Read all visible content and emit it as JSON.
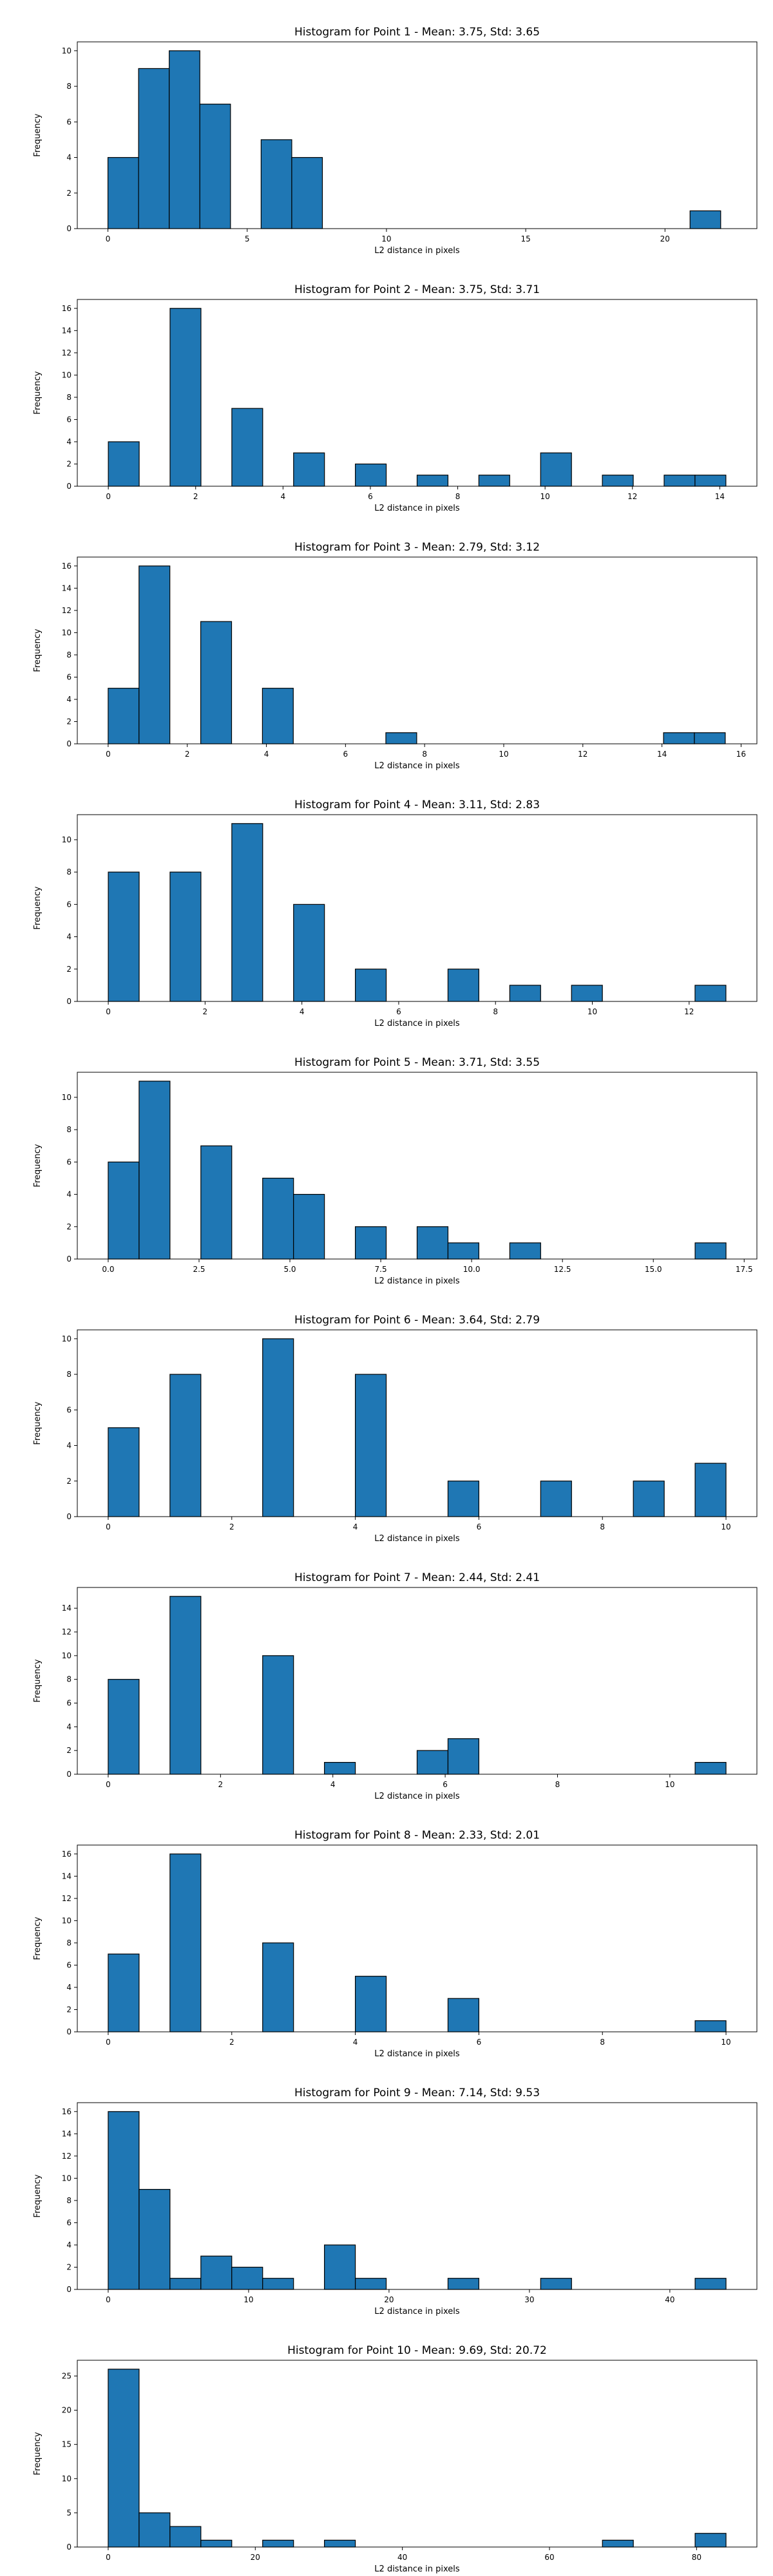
{
  "chart_data": [
    {
      "type": "bar",
      "title": "Histogram for Point 1 - Mean: 3.75, Std: 3.65",
      "xlabel": "L2 distance in pixels",
      "ylabel": "Frequency",
      "xlim": [
        -1.1,
        23.3
      ],
      "ylim": [
        0,
        10.5
      ],
      "xticks": [
        0,
        5,
        10,
        15,
        20
      ],
      "xtick_labels": [
        "0",
        "5",
        "10",
        "15",
        "20"
      ],
      "yticks": [
        0,
        2,
        4,
        6,
        8,
        10
      ],
      "ytick_labels": [
        "0",
        "2",
        "4",
        "6",
        "8",
        "10"
      ],
      "bin_edges": [
        0,
        1.1,
        2.2,
        3.3,
        4.4,
        5.5,
        6.6,
        7.7,
        8.8,
        9.9,
        11,
        12.1,
        13.2,
        14.3,
        15.4,
        16.5,
        17.6,
        18.7,
        19.8,
        20.9,
        22
      ],
      "counts": [
        4,
        9,
        10,
        7,
        0,
        5,
        4,
        0,
        0,
        0,
        0,
        0,
        0,
        0,
        0,
        0,
        0,
        0,
        0,
        1
      ],
      "color": "#1f77b4"
    },
    {
      "type": "bar",
      "title": "Histogram for Point 2 - Mean: 3.75, Std: 3.71",
      "xlabel": "L2 distance in pixels",
      "ylabel": "Frequency",
      "xlim": [
        -0.71,
        14.85
      ],
      "ylim": [
        0,
        16.8
      ],
      "xticks": [
        0,
        2,
        4,
        6,
        8,
        10,
        12,
        14
      ],
      "xtick_labels": [
        "0",
        "2",
        "4",
        "6",
        "8",
        "10",
        "12",
        "14"
      ],
      "yticks": [
        0,
        2,
        4,
        6,
        8,
        10,
        12,
        14,
        16
      ],
      "ytick_labels": [
        "0",
        "2",
        "4",
        "6",
        "8",
        "10",
        "12",
        "14",
        "16"
      ],
      "bin_edges": [
        0,
        0.707,
        1.414,
        2.121,
        2.828,
        3.535,
        4.242,
        4.949,
        5.656,
        6.363,
        7.07,
        7.777,
        8.484,
        9.191,
        9.898,
        10.605,
        11.312,
        12.019,
        12.726,
        13.433,
        14.14
      ],
      "counts": [
        4,
        0,
        16,
        0,
        7,
        0,
        3,
        0,
        2,
        0,
        1,
        0,
        1,
        0,
        3,
        0,
        1,
        0,
        1,
        1
      ],
      "color": "#1f77b4"
    },
    {
      "type": "bar",
      "title": "Histogram for Point 3 - Mean: 2.79, Std: 3.12",
      "xlabel": "L2 distance in pixels",
      "ylabel": "Frequency",
      "xlim": [
        -0.78,
        16.4
      ],
      "ylim": [
        0,
        16.8
      ],
      "xticks": [
        0,
        2,
        4,
        6,
        8,
        10,
        12,
        14,
        16
      ],
      "xtick_labels": [
        "0",
        "2",
        "4",
        "6",
        "8",
        "10",
        "12",
        "14",
        "16"
      ],
      "yticks": [
        0,
        2,
        4,
        6,
        8,
        10,
        12,
        14,
        16
      ],
      "ytick_labels": [
        "0",
        "2",
        "4",
        "6",
        "8",
        "10",
        "12",
        "14",
        "16"
      ],
      "bin_edges": [
        0,
        0.78,
        1.56,
        2.34,
        3.12,
        3.9,
        4.68,
        5.46,
        6.24,
        7.02,
        7.8,
        8.58,
        9.36,
        10.14,
        10.92,
        11.7,
        12.48,
        13.26,
        14.04,
        14.82,
        15.6
      ],
      "counts": [
        5,
        16,
        0,
        11,
        0,
        5,
        0,
        0,
        0,
        1,
        0,
        0,
        0,
        0,
        0,
        0,
        0,
        0,
        1,
        1
      ],
      "color": "#1f77b4"
    },
    {
      "type": "bar",
      "title": "Histogram for Point 4 - Mean: 3.11, Std: 2.83",
      "xlabel": "L2 distance in pixels",
      "ylabel": "Frequency",
      "xlim": [
        -0.64,
        13.4
      ],
      "ylim": [
        0,
        11.55
      ],
      "xticks": [
        0,
        2,
        4,
        6,
        8,
        10,
        12
      ],
      "xtick_labels": [
        "0",
        "2",
        "4",
        "6",
        "8",
        "10",
        "12"
      ],
      "yticks": [
        0,
        2,
        4,
        6,
        8,
        10
      ],
      "ytick_labels": [
        "0",
        "2",
        "4",
        "6",
        "8",
        "10"
      ],
      "bin_edges": [
        0,
        0.638,
        1.276,
        1.914,
        2.552,
        3.19,
        3.828,
        4.466,
        5.104,
        5.742,
        6.38,
        7.018,
        7.656,
        8.294,
        8.932,
        9.57,
        10.208,
        10.846,
        11.484,
        12.122,
        12.76
      ],
      "counts": [
        8,
        0,
        8,
        0,
        11,
        0,
        6,
        0,
        2,
        0,
        0,
        2,
        0,
        1,
        0,
        1,
        0,
        0,
        0,
        1
      ],
      "color": "#1f77b4"
    },
    {
      "type": "bar",
      "title": "Histogram for Point 5 - Mean: 3.71, Std: 3.55",
      "xlabel": "L2 distance in pixels",
      "ylabel": "Frequency",
      "xlim": [
        -0.85,
        17.85
      ],
      "ylim": [
        0,
        11.55
      ],
      "xticks": [
        0,
        2.5,
        5,
        7.5,
        10,
        12.5,
        15,
        17.5
      ],
      "xtick_labels": [
        "0.0",
        "2.5",
        "5.0",
        "7.5",
        "10.0",
        "12.5",
        "15.0",
        "17.5"
      ],
      "yticks": [
        0,
        2,
        4,
        6,
        8,
        10
      ],
      "ytick_labels": [
        "0",
        "2",
        "4",
        "6",
        "8",
        "10"
      ],
      "bin_edges": [
        0,
        0.85,
        1.7,
        2.55,
        3.4,
        4.25,
        5.1,
        5.95,
        6.8,
        7.65,
        8.5,
        9.35,
        10.2,
        11.05,
        11.9,
        12.75,
        13.6,
        14.45,
        15.3,
        16.15,
        17
      ],
      "counts": [
        6,
        11,
        0,
        7,
        0,
        5,
        4,
        0,
        2,
        0,
        2,
        1,
        0,
        1,
        0,
        0,
        0,
        0,
        0,
        1
      ],
      "color": "#1f77b4"
    },
    {
      "type": "bar",
      "title": "Histogram for Point 6 - Mean: 3.64, Std: 2.79",
      "xlabel": "L2 distance in pixels",
      "ylabel": "Frequency",
      "xlim": [
        -0.5,
        10.5
      ],
      "ylim": [
        0,
        10.5
      ],
      "xticks": [
        0,
        2,
        4,
        6,
        8,
        10
      ],
      "xtick_labels": [
        "0",
        "2",
        "4",
        "6",
        "8",
        "10"
      ],
      "yticks": [
        0,
        2,
        4,
        6,
        8,
        10
      ],
      "ytick_labels": [
        "0",
        "2",
        "4",
        "6",
        "8",
        "10"
      ],
      "bin_edges": [
        0,
        0.5,
        1,
        1.5,
        2,
        2.5,
        3,
        3.5,
        4,
        4.5,
        5,
        5.5,
        6,
        6.5,
        7,
        7.5,
        8,
        8.5,
        9,
        9.5,
        10
      ],
      "counts": [
        5,
        0,
        8,
        0,
        0,
        10,
        0,
        0,
        8,
        0,
        0,
        2,
        0,
        0,
        2,
        0,
        0,
        2,
        0,
        3
      ],
      "color": "#1f77b4"
    },
    {
      "type": "bar",
      "title": "Histogram for Point 7 - Mean: 2.44, Std: 2.41",
      "xlabel": "L2 distance in pixels",
      "ylabel": "Frequency",
      "xlim": [
        -0.55,
        11.55
      ],
      "ylim": [
        0,
        15.75
      ],
      "xticks": [
        0,
        2,
        4,
        6,
        8,
        10
      ],
      "xtick_labels": [
        "0",
        "2",
        "4",
        "6",
        "8",
        "10"
      ],
      "yticks": [
        0,
        2,
        4,
        6,
        8,
        10,
        12,
        14
      ],
      "ytick_labels": [
        "0",
        "2",
        "4",
        "6",
        "8",
        "10",
        "12",
        "14"
      ],
      "bin_edges": [
        0,
        0.55,
        1.1,
        1.65,
        2.2,
        2.75,
        3.3,
        3.85,
        4.4,
        4.95,
        5.5,
        6.05,
        6.6,
        7.15,
        7.7,
        8.25,
        8.8,
        9.35,
        9.9,
        10.45,
        11
      ],
      "counts": [
        8,
        0,
        15,
        0,
        0,
        10,
        0,
        1,
        0,
        0,
        2,
        3,
        0,
        0,
        0,
        0,
        0,
        0,
        0,
        1
      ],
      "color": "#1f77b4"
    },
    {
      "type": "bar",
      "title": "Histogram for Point 8 - Mean: 2.33, Std: 2.01",
      "xlabel": "L2 distance in pixels",
      "ylabel": "Frequency",
      "xlim": [
        -0.5,
        10.5
      ],
      "ylim": [
        0,
        16.8
      ],
      "xticks": [
        0,
        2,
        4,
        6,
        8,
        10
      ],
      "xtick_labels": [
        "0",
        "2",
        "4",
        "6",
        "8",
        "10"
      ],
      "yticks": [
        0,
        2,
        4,
        6,
        8,
        10,
        12,
        14,
        16
      ],
      "ytick_labels": [
        "0",
        "2",
        "4",
        "6",
        "8",
        "10",
        "12",
        "14",
        "16"
      ],
      "bin_edges": [
        0,
        0.5,
        1,
        1.5,
        2,
        2.5,
        3,
        3.5,
        4,
        4.5,
        5,
        5.5,
        6,
        6.5,
        7,
        7.5,
        8,
        8.5,
        9,
        9.5,
        10
      ],
      "counts": [
        7,
        0,
        16,
        0,
        0,
        8,
        0,
        0,
        5,
        0,
        0,
        3,
        0,
        0,
        0,
        0,
        0,
        0,
        0,
        1
      ],
      "color": "#1f77b4"
    },
    {
      "type": "bar",
      "title": "Histogram for Point 9 - Mean: 7.14, Std: 9.53",
      "xlabel": "L2 distance in pixels",
      "ylabel": "Frequency",
      "xlim": [
        -2.2,
        46.2
      ],
      "ylim": [
        0,
        16.8
      ],
      "xticks": [
        0,
        10,
        20,
        30,
        40
      ],
      "xtick_labels": [
        "0",
        "10",
        "20",
        "30",
        "40"
      ],
      "yticks": [
        0,
        2,
        4,
        6,
        8,
        10,
        12,
        14,
        16
      ],
      "ytick_labels": [
        "0",
        "2",
        "4",
        "6",
        "8",
        "10",
        "12",
        "14",
        "16"
      ],
      "bin_edges": [
        0,
        2.2,
        4.4,
        6.6,
        8.8,
        11,
        13.2,
        15.4,
        17.6,
        19.8,
        22,
        24.2,
        26.4,
        28.6,
        30.8,
        33,
        35.2,
        37.4,
        39.6,
        41.8,
        44
      ],
      "counts": [
        16,
        9,
        1,
        3,
        2,
        1,
        0,
        4,
        1,
        0,
        0,
        1,
        0,
        0,
        1,
        0,
        0,
        0,
        0,
        1
      ],
      "color": "#1f77b4"
    },
    {
      "type": "bar",
      "title": "Histogram for Point 10 - Mean: 9.69, Std: 20.72",
      "xlabel": "L2 distance in pixels",
      "ylabel": "Frequency",
      "xlim": [
        -4.2,
        88.2
      ],
      "ylim": [
        0,
        27.3
      ],
      "xticks": [
        0,
        20,
        40,
        60,
        80
      ],
      "xtick_labels": [
        "0",
        "20",
        "40",
        "60",
        "80"
      ],
      "yticks": [
        0,
        5,
        10,
        15,
        20,
        25
      ],
      "ytick_labels": [
        "0",
        "5",
        "10",
        "15",
        "20",
        "25"
      ],
      "bin_edges": [
        0,
        4.2,
        8.4,
        12.6,
        16.8,
        21,
        25.2,
        29.4,
        33.6,
        37.8,
        42,
        46.2,
        50.4,
        54.6,
        58.8,
        63,
        67.2,
        71.4,
        75.6,
        79.8,
        84
      ],
      "counts": [
        26,
        5,
        3,
        1,
        0,
        1,
        0,
        1,
        0,
        0,
        0,
        0,
        0,
        0,
        0,
        0,
        1,
        0,
        0,
        2
      ],
      "color": "#1f77b4"
    }
  ]
}
